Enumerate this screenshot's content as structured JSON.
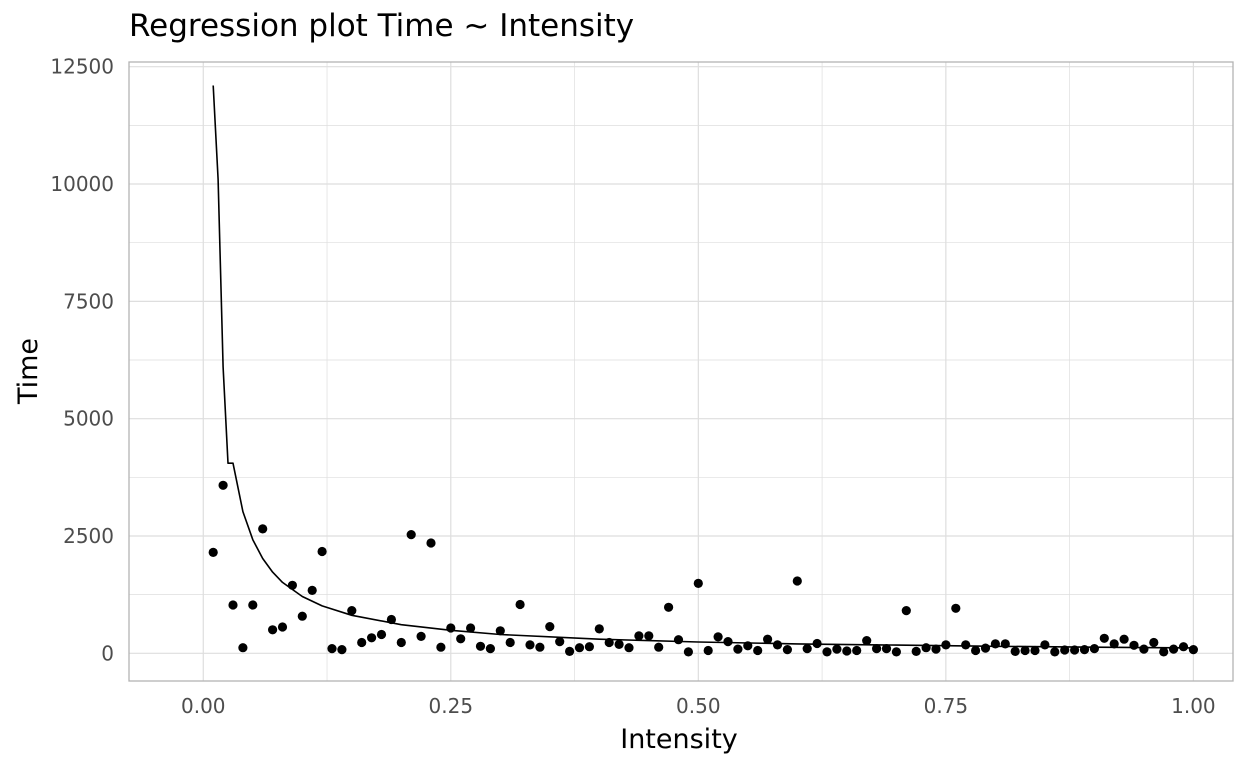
{
  "chart_data": {
    "type": "scatter",
    "title": "Regression plot Time ~ Intensity",
    "xlabel": "Intensity",
    "ylabel": "Time",
    "xlim": [
      -0.075,
      1.04
    ],
    "ylim": [
      -590,
      12600
    ],
    "x_ticks": [
      0.0,
      0.25,
      0.5,
      0.75,
      1.0
    ],
    "x_tick_labels": [
      "0.00",
      "0.25",
      "0.50",
      "0.75",
      "1.00"
    ],
    "y_ticks": [
      0,
      2500,
      5000,
      7500,
      10000,
      12500
    ],
    "y_tick_labels": [
      "0",
      "2500",
      "5000",
      "7500",
      "10000",
      "12500"
    ],
    "grid": true,
    "legend": "none",
    "colors": {
      "points": "#000000",
      "line": "#000000",
      "grid": "#dedede",
      "panel_border": "#b3b3b3",
      "tick_label": "#4d4d4d"
    },
    "points": [
      {
        "x": 0.01,
        "y": 2150
      },
      {
        "x": 0.02,
        "y": 3580
      },
      {
        "x": 0.03,
        "y": 1030
      },
      {
        "x": 0.04,
        "y": 120
      },
      {
        "x": 0.05,
        "y": 1030
      },
      {
        "x": 0.06,
        "y": 2650
      },
      {
        "x": 0.07,
        "y": 500
      },
      {
        "x": 0.08,
        "y": 560
      },
      {
        "x": 0.09,
        "y": 1450
      },
      {
        "x": 0.1,
        "y": 790
      },
      {
        "x": 0.11,
        "y": 1340
      },
      {
        "x": 0.12,
        "y": 2170
      },
      {
        "x": 0.13,
        "y": 100
      },
      {
        "x": 0.14,
        "y": 80
      },
      {
        "x": 0.15,
        "y": 910
      },
      {
        "x": 0.16,
        "y": 230
      },
      {
        "x": 0.17,
        "y": 330
      },
      {
        "x": 0.18,
        "y": 400
      },
      {
        "x": 0.19,
        "y": 720
      },
      {
        "x": 0.2,
        "y": 230
      },
      {
        "x": 0.21,
        "y": 2530
      },
      {
        "x": 0.22,
        "y": 360
      },
      {
        "x": 0.23,
        "y": 2350
      },
      {
        "x": 0.24,
        "y": 130
      },
      {
        "x": 0.25,
        "y": 540
      },
      {
        "x": 0.26,
        "y": 310
      },
      {
        "x": 0.27,
        "y": 540
      },
      {
        "x": 0.28,
        "y": 150
      },
      {
        "x": 0.29,
        "y": 100
      },
      {
        "x": 0.3,
        "y": 480
      },
      {
        "x": 0.31,
        "y": 230
      },
      {
        "x": 0.32,
        "y": 1040
      },
      {
        "x": 0.33,
        "y": 180
      },
      {
        "x": 0.34,
        "y": 130
      },
      {
        "x": 0.35,
        "y": 570
      },
      {
        "x": 0.36,
        "y": 250
      },
      {
        "x": 0.37,
        "y": 40
      },
      {
        "x": 0.38,
        "y": 120
      },
      {
        "x": 0.39,
        "y": 140
      },
      {
        "x": 0.4,
        "y": 520
      },
      {
        "x": 0.41,
        "y": 230
      },
      {
        "x": 0.42,
        "y": 190
      },
      {
        "x": 0.43,
        "y": 120
      },
      {
        "x": 0.44,
        "y": 370
      },
      {
        "x": 0.45,
        "y": 370
      },
      {
        "x": 0.46,
        "y": 130
      },
      {
        "x": 0.47,
        "y": 980
      },
      {
        "x": 0.48,
        "y": 290
      },
      {
        "x": 0.49,
        "y": 30
      },
      {
        "x": 0.5,
        "y": 1490
      },
      {
        "x": 0.51,
        "y": 60
      },
      {
        "x": 0.52,
        "y": 350
      },
      {
        "x": 0.53,
        "y": 250
      },
      {
        "x": 0.54,
        "y": 90
      },
      {
        "x": 0.55,
        "y": 160
      },
      {
        "x": 0.56,
        "y": 60
      },
      {
        "x": 0.57,
        "y": 300
      },
      {
        "x": 0.58,
        "y": 180
      },
      {
        "x": 0.59,
        "y": 80
      },
      {
        "x": 0.6,
        "y": 1540
      },
      {
        "x": 0.61,
        "y": 100
      },
      {
        "x": 0.62,
        "y": 210
      },
      {
        "x": 0.63,
        "y": 30
      },
      {
        "x": 0.64,
        "y": 90
      },
      {
        "x": 0.65,
        "y": 50
      },
      {
        "x": 0.66,
        "y": 60
      },
      {
        "x": 0.67,
        "y": 270
      },
      {
        "x": 0.68,
        "y": 100
      },
      {
        "x": 0.69,
        "y": 100
      },
      {
        "x": 0.7,
        "y": 30
      },
      {
        "x": 0.71,
        "y": 910
      },
      {
        "x": 0.72,
        "y": 40
      },
      {
        "x": 0.73,
        "y": 120
      },
      {
        "x": 0.74,
        "y": 90
      },
      {
        "x": 0.75,
        "y": 180
      },
      {
        "x": 0.76,
        "y": 960
      },
      {
        "x": 0.77,
        "y": 180
      },
      {
        "x": 0.78,
        "y": 60
      },
      {
        "x": 0.79,
        "y": 110
      },
      {
        "x": 0.8,
        "y": 200
      },
      {
        "x": 0.81,
        "y": 200
      },
      {
        "x": 0.82,
        "y": 40
      },
      {
        "x": 0.83,
        "y": 60
      },
      {
        "x": 0.84,
        "y": 60
      },
      {
        "x": 0.85,
        "y": 180
      },
      {
        "x": 0.86,
        "y": 30
      },
      {
        "x": 0.87,
        "y": 70
      },
      {
        "x": 0.88,
        "y": 70
      },
      {
        "x": 0.89,
        "y": 80
      },
      {
        "x": 0.9,
        "y": 100
      },
      {
        "x": 0.91,
        "y": 320
      },
      {
        "x": 0.92,
        "y": 200
      },
      {
        "x": 0.93,
        "y": 300
      },
      {
        "x": 0.94,
        "y": 170
      },
      {
        "x": 0.95,
        "y": 90
      },
      {
        "x": 0.96,
        "y": 230
      },
      {
        "x": 0.97,
        "y": 30
      },
      {
        "x": 0.98,
        "y": 90
      },
      {
        "x": 0.99,
        "y": 140
      },
      {
        "x": 1.0,
        "y": 80
      }
    ],
    "fit_line": {
      "x": [
        0.01,
        0.015,
        0.02,
        0.025,
        0.03,
        0.04,
        0.05,
        0.06,
        0.07,
        0.08,
        0.1,
        0.12,
        0.15,
        0.2,
        0.25,
        0.3,
        0.4,
        0.5,
        0.6,
        0.7,
        0.8,
        0.9,
        1.0
      ],
      "y": [
        12100,
        10100,
        6100,
        4050,
        4050,
        3020,
        2420,
        2020,
        1730,
        1510,
        1210,
        1010,
        810,
        610,
        490,
        400,
        300,
        240,
        200,
        175,
        150,
        130,
        115
      ]
    }
  }
}
